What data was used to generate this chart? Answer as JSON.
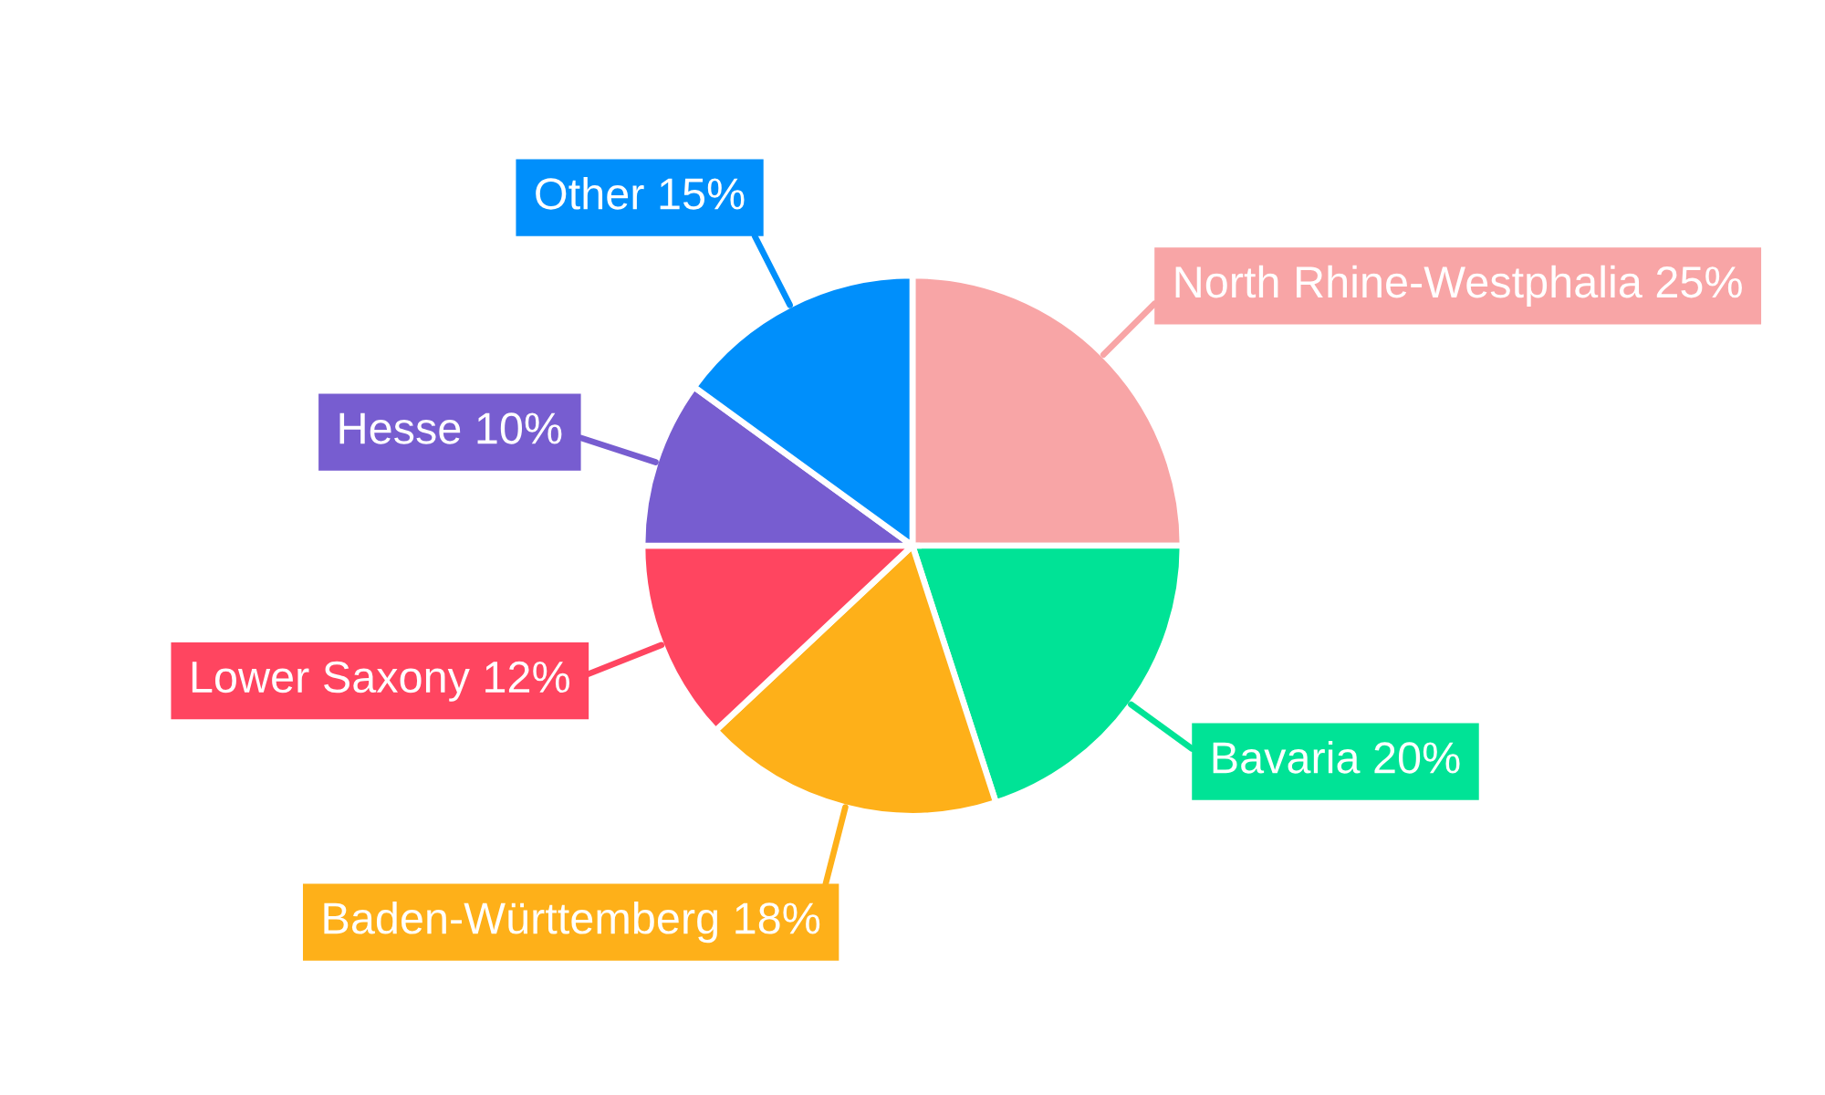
{
  "chart_data": {
    "type": "pie",
    "categories": [
      "North Rhine-Westphalia",
      "Bavaria",
      "Baden-Württemberg",
      "Lower Saxony",
      "Hesse",
      "Other"
    ],
    "values": [
      25,
      20,
      18,
      12,
      10,
      15
    ],
    "value_labels": [
      "25%",
      "20%",
      "18%",
      "12%",
      "10%",
      "15%"
    ],
    "colors": [
      "#f8a5a6",
      "#00e396",
      "#feb019",
      "#ff4560",
      "#775dd0",
      "#008ffb"
    ]
  }
}
